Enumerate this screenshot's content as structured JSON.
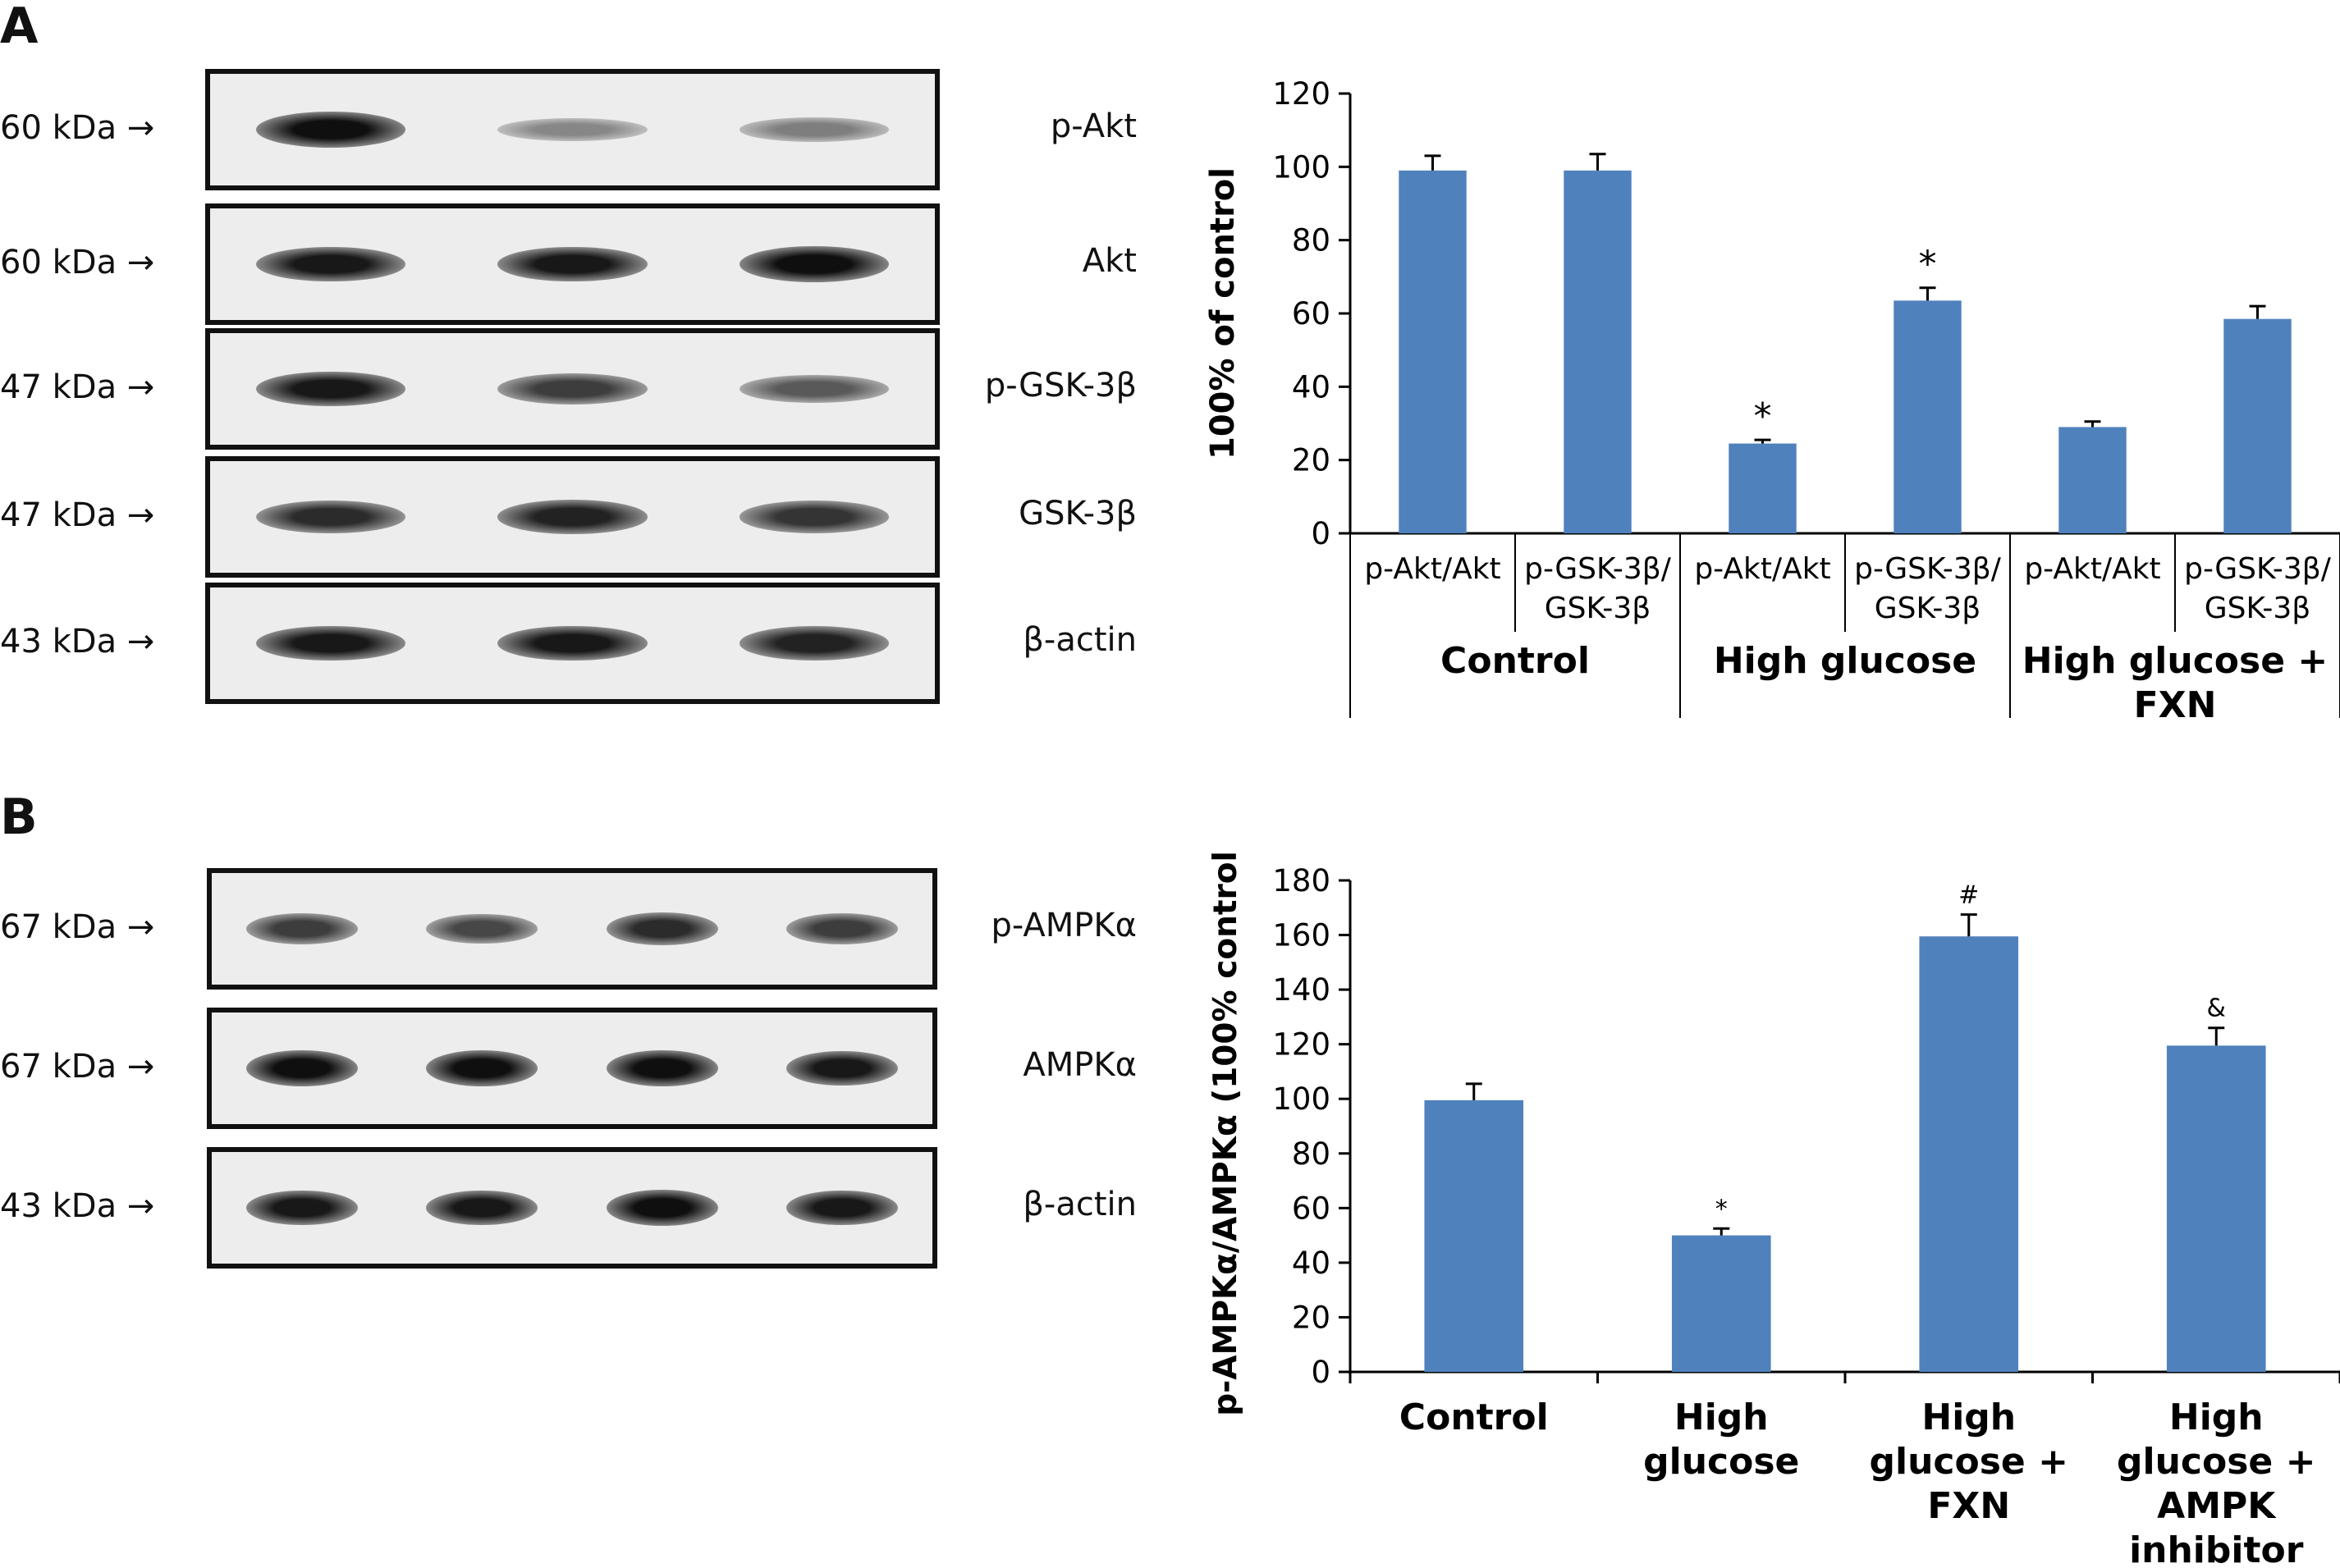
{
  "panels": {
    "a_label": "A",
    "b_label": "B"
  },
  "blots_a": [
    {
      "mw": "60 kDa →",
      "protein": "p-Akt",
      "intensity": [
        1.0,
        0.35,
        0.4
      ]
    },
    {
      "mw": "60 kDa →",
      "protein": "Akt",
      "intensity": [
        0.95,
        0.95,
        1.0
      ]
    },
    {
      "mw": "47 kDa →",
      "protein": "p-GSK-3β",
      "intensity": [
        0.95,
        0.75,
        0.6
      ]
    },
    {
      "mw": "47 kDa →",
      "protein": "GSK-3β",
      "intensity": [
        0.85,
        0.9,
        0.8
      ]
    },
    {
      "mw": "43 kDa →",
      "protein": "β-actin",
      "intensity": [
        0.95,
        0.95,
        0.9
      ]
    }
  ],
  "blots_b": [
    {
      "mw": "67 kDa →",
      "protein": "p-AMPKα",
      "intensity": [
        0.75,
        0.7,
        0.85,
        0.75
      ]
    },
    {
      "mw": "67 kDa →",
      "protein": "AMPKα",
      "intensity": [
        1.0,
        1.0,
        1.0,
        0.95
      ]
    },
    {
      "mw": "43 kDa →",
      "protein": "β-actin",
      "intensity": [
        0.95,
        0.95,
        1.0,
        0.95
      ]
    }
  ],
  "chart_data": [
    {
      "type": "bar",
      "ylabel": "100% of control",
      "ylim": [
        0,
        120
      ],
      "yticks": [
        0,
        20,
        40,
        60,
        80,
        100,
        120
      ],
      "color": "#4f81bd",
      "categories": [
        "p-Akt/Akt",
        "p-GSK-3β/GSK-3β",
        "p-Akt/Akt",
        "p-GSK-3β/GSK-3β",
        "p-Akt/Akt",
        "p-GSK-3β/GSK-3β"
      ],
      "category_lines": [
        [
          "p-Akt/Akt"
        ],
        [
          "p-GSK-3β/",
          "GSK-3β"
        ],
        [
          "p-Akt/Akt"
        ],
        [
          "p-GSK-3β/",
          "GSK-3β"
        ],
        [
          "p-Akt/Akt"
        ],
        [
          "p-GSK-3β/",
          "GSK-3β"
        ]
      ],
      "groups": [
        {
          "lines": [
            "Control"
          ]
        },
        {
          "lines": [
            "High glucose"
          ]
        },
        {
          "lines": [
            "High glucose +",
            "FXN"
          ]
        }
      ],
      "values": [
        99,
        99,
        24.5,
        63.5,
        29,
        58.5
      ],
      "errors": [
        4,
        4.5,
        1,
        3.5,
        1.5,
        3.5
      ],
      "annotations": [
        "",
        "",
        "*",
        "*",
        "",
        ""
      ]
    },
    {
      "type": "bar",
      "ylabel": "p-AMPKα/AMPKα (100% control)",
      "ylim": [
        0,
        180
      ],
      "yticks": [
        0,
        20,
        40,
        60,
        80,
        100,
        120,
        140,
        160,
        180
      ],
      "color": "#4f81bd",
      "categories": [
        "Control",
        "High glucose",
        "High glucose + FXN",
        "High glucose + AMPK inhibitor"
      ],
      "category_lines": [
        [
          "Control"
        ],
        [
          "High",
          "glucose"
        ],
        [
          "High",
          "glucose +",
          "FXN"
        ],
        [
          "High",
          "glucose +",
          "AMPK",
          "inhibitor"
        ]
      ],
      "values": [
        99.5,
        50,
        159.5,
        119.5
      ],
      "errors": [
        6,
        2.5,
        8,
        6.5
      ],
      "annotations": [
        "",
        "*",
        "#",
        "&"
      ]
    }
  ]
}
